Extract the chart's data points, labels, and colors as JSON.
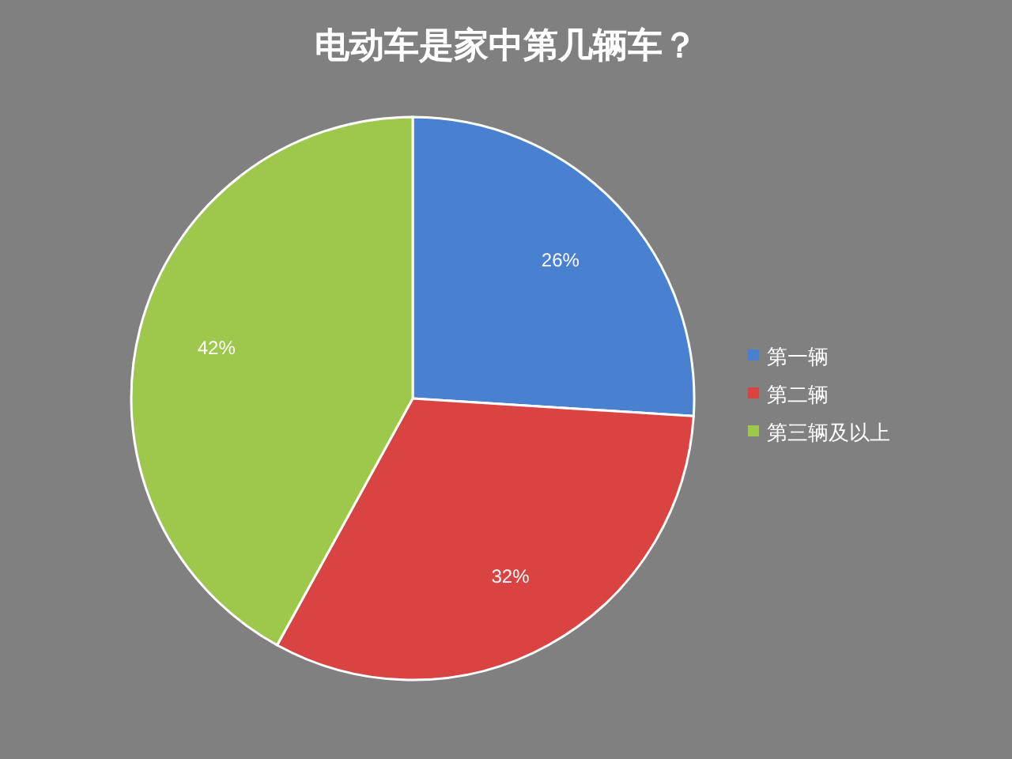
{
  "chart_data": {
    "type": "pie",
    "title": "电动车是家中第几辆车？",
    "categories": [
      "第一辆",
      "第二辆",
      "第三辆及以上"
    ],
    "values": [
      26,
      32,
      42
    ],
    "colors": [
      "#4a80d0",
      "#d94442",
      "#9dc84b"
    ],
    "value_labels": [
      "26%",
      "32%",
      "42%"
    ],
    "legend": "right"
  }
}
